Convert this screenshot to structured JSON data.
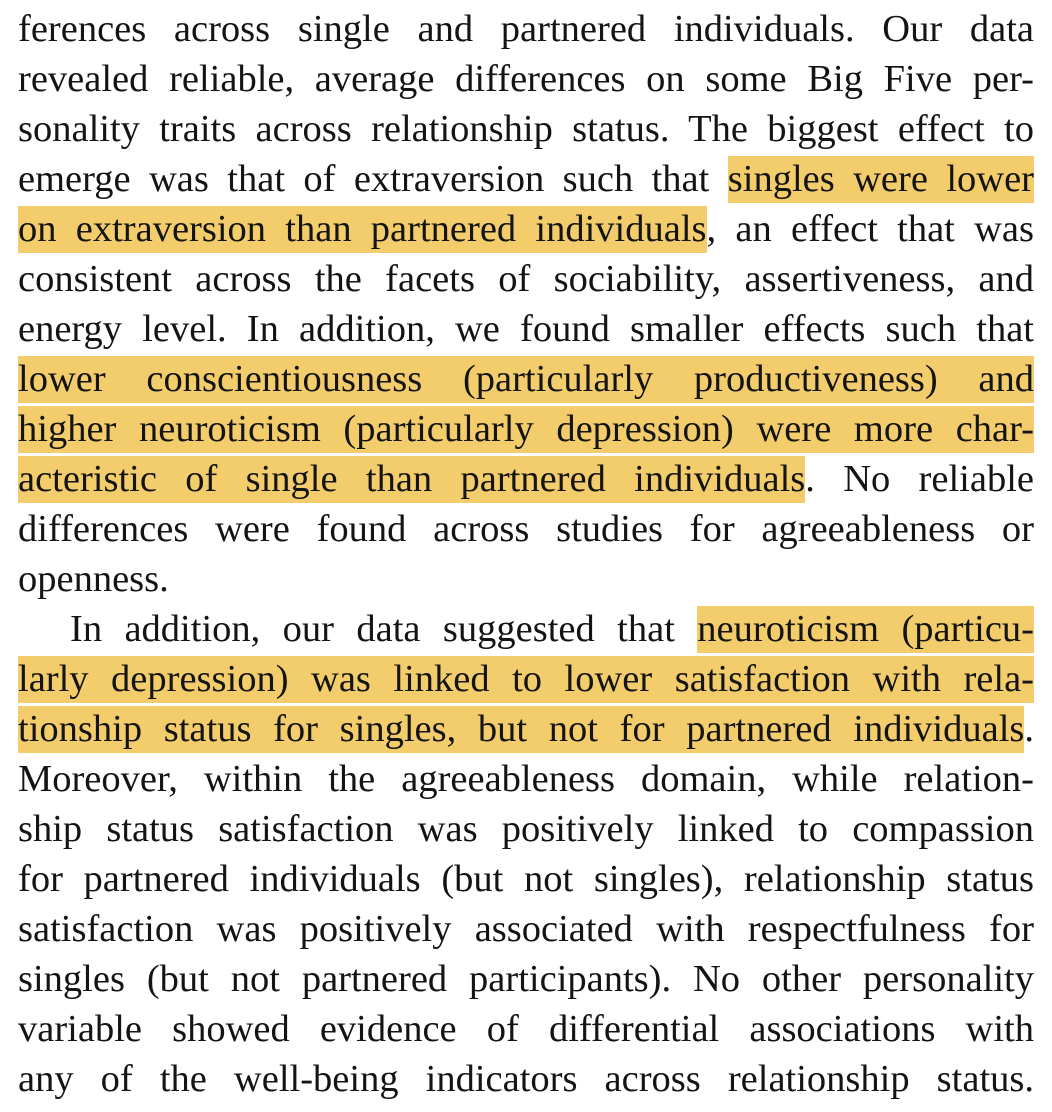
{
  "document": {
    "highlight_color": "#f3cd6b",
    "text_color": "#141414",
    "lines": [
      {
        "plain_before": "ferences across single and partnered individuals. Our data",
        "highlight": "",
        "plain_after": ""
      },
      {
        "plain_before": "revealed reliable, average differences on some Big Five per-",
        "highlight": "",
        "plain_after": ""
      },
      {
        "plain_before": "sonality traits across relationship status. The biggest effect to",
        "highlight": "",
        "plain_after": ""
      },
      {
        "plain_before": "emerge was that of extraversion such that ",
        "highlight": "singles were lower",
        "plain_after": ""
      },
      {
        "plain_before": "",
        "highlight": "on extraversion than partnered individuals",
        "plain_after": ", an effect that was"
      },
      {
        "plain_before": "consistent across the facets of sociability, assertiveness, and",
        "highlight": "",
        "plain_after": ""
      },
      {
        "plain_before": "energy level. In addition, we found smaller effects such that",
        "highlight": "",
        "plain_after": ""
      },
      {
        "plain_before": "",
        "highlight": "lower conscientiousness (particularly productiveness) and",
        "plain_after": ""
      },
      {
        "plain_before": "",
        "highlight": "higher neuroticism (particularly depression) were more char-",
        "plain_after": ""
      },
      {
        "plain_before": "",
        "highlight": "acteristic of single than partnered individuals",
        "plain_after": ". No reliable"
      },
      {
        "plain_before": "differences were found across studies for agreeableness or",
        "highlight": "",
        "plain_after": ""
      },
      {
        "plain_before": "openness.",
        "highlight": "",
        "plain_after": ""
      },
      {
        "plain_before": "In addition, our data suggested that ",
        "highlight": "neuroticism (particu-",
        "plain_after": ""
      },
      {
        "plain_before": "",
        "highlight": "larly depression) was linked to lower satisfaction with rela-",
        "plain_after": ""
      },
      {
        "plain_before": "",
        "highlight": "tionship status for singles, but not for partnered individuals",
        "plain_after": "."
      },
      {
        "plain_before": "Moreover, within the agreeableness domain, while relation-",
        "highlight": "",
        "plain_after": ""
      },
      {
        "plain_before": "ship status satisfaction was positively linked to compassion",
        "highlight": "",
        "plain_after": ""
      },
      {
        "plain_before": "for partnered individuals (but not singles), relationship status",
        "highlight": "",
        "plain_after": ""
      },
      {
        "plain_before": "satisfaction was positively associated with respectfulness for",
        "highlight": "",
        "plain_after": ""
      },
      {
        "plain_before": "singles (but not partnered participants). No other personality",
        "highlight": "",
        "plain_after": ""
      },
      {
        "plain_before": "variable showed evidence of differential associations with",
        "highlight": "",
        "plain_after": ""
      },
      {
        "plain_before": "any of the well-being indicators across relationship status.",
        "highlight": "",
        "plain_after": ""
      }
    ]
  }
}
